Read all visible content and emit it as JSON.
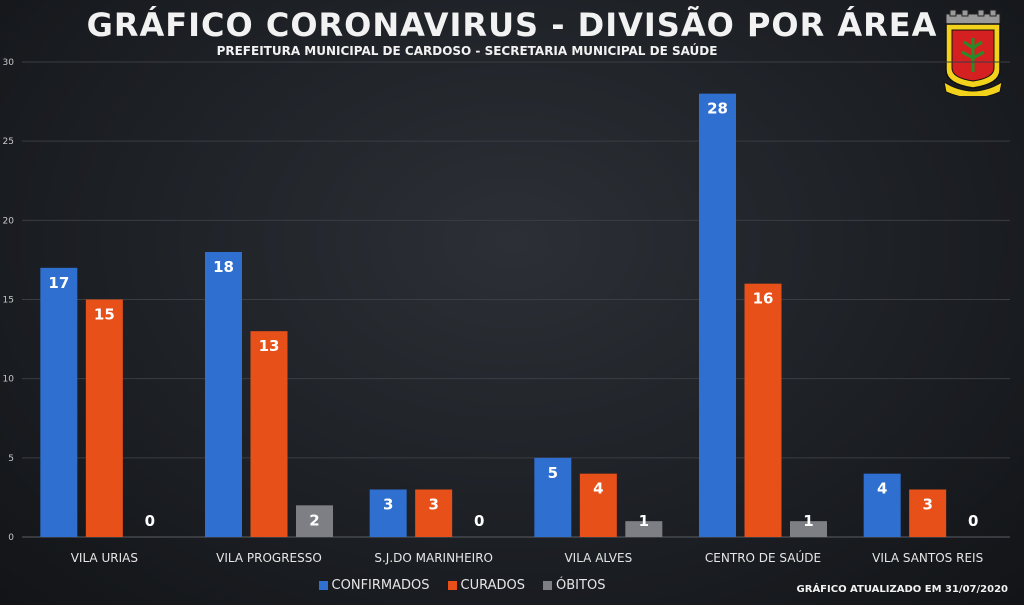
{
  "header": {
    "title": "GRÁFICO CORONAVIRUS - DIVISÃO POR ÁREA",
    "subtitle": "PREFEITURA MUNICIPAL DE CARDOSO - SECRETARIA MUNICIPAL DE SAÚDE"
  },
  "footnote": "GRÁFICO ATUALIZADO EM 31/07/2020",
  "colors": {
    "confirmados": "#2f6fd0",
    "curados": "#e8501a",
    "obitos": "#7d7f84"
  },
  "chart_data": {
    "type": "bar",
    "categories": [
      "VILA URIAS",
      "VILA PROGRESSO",
      "S.J.DO MARINHEIRO",
      "VILA ALVES",
      "CENTRO DE SAÚDE",
      "VILA SANTOS REIS"
    ],
    "series": [
      {
        "name": "CONFIRMADOS",
        "values": [
          17,
          18,
          3,
          5,
          28,
          4
        ]
      },
      {
        "name": "CURADOS",
        "values": [
          15,
          13,
          3,
          4,
          16,
          3
        ]
      },
      {
        "name": "ÓBITOS",
        "values": [
          0,
          2,
          0,
          1,
          1,
          0
        ]
      }
    ],
    "ylim": [
      0,
      30
    ],
    "yticks": [
      "0",
      "5",
      "10",
      "15",
      "20",
      "25",
      "30"
    ],
    "grid": true,
    "legend": "bottom-center"
  }
}
